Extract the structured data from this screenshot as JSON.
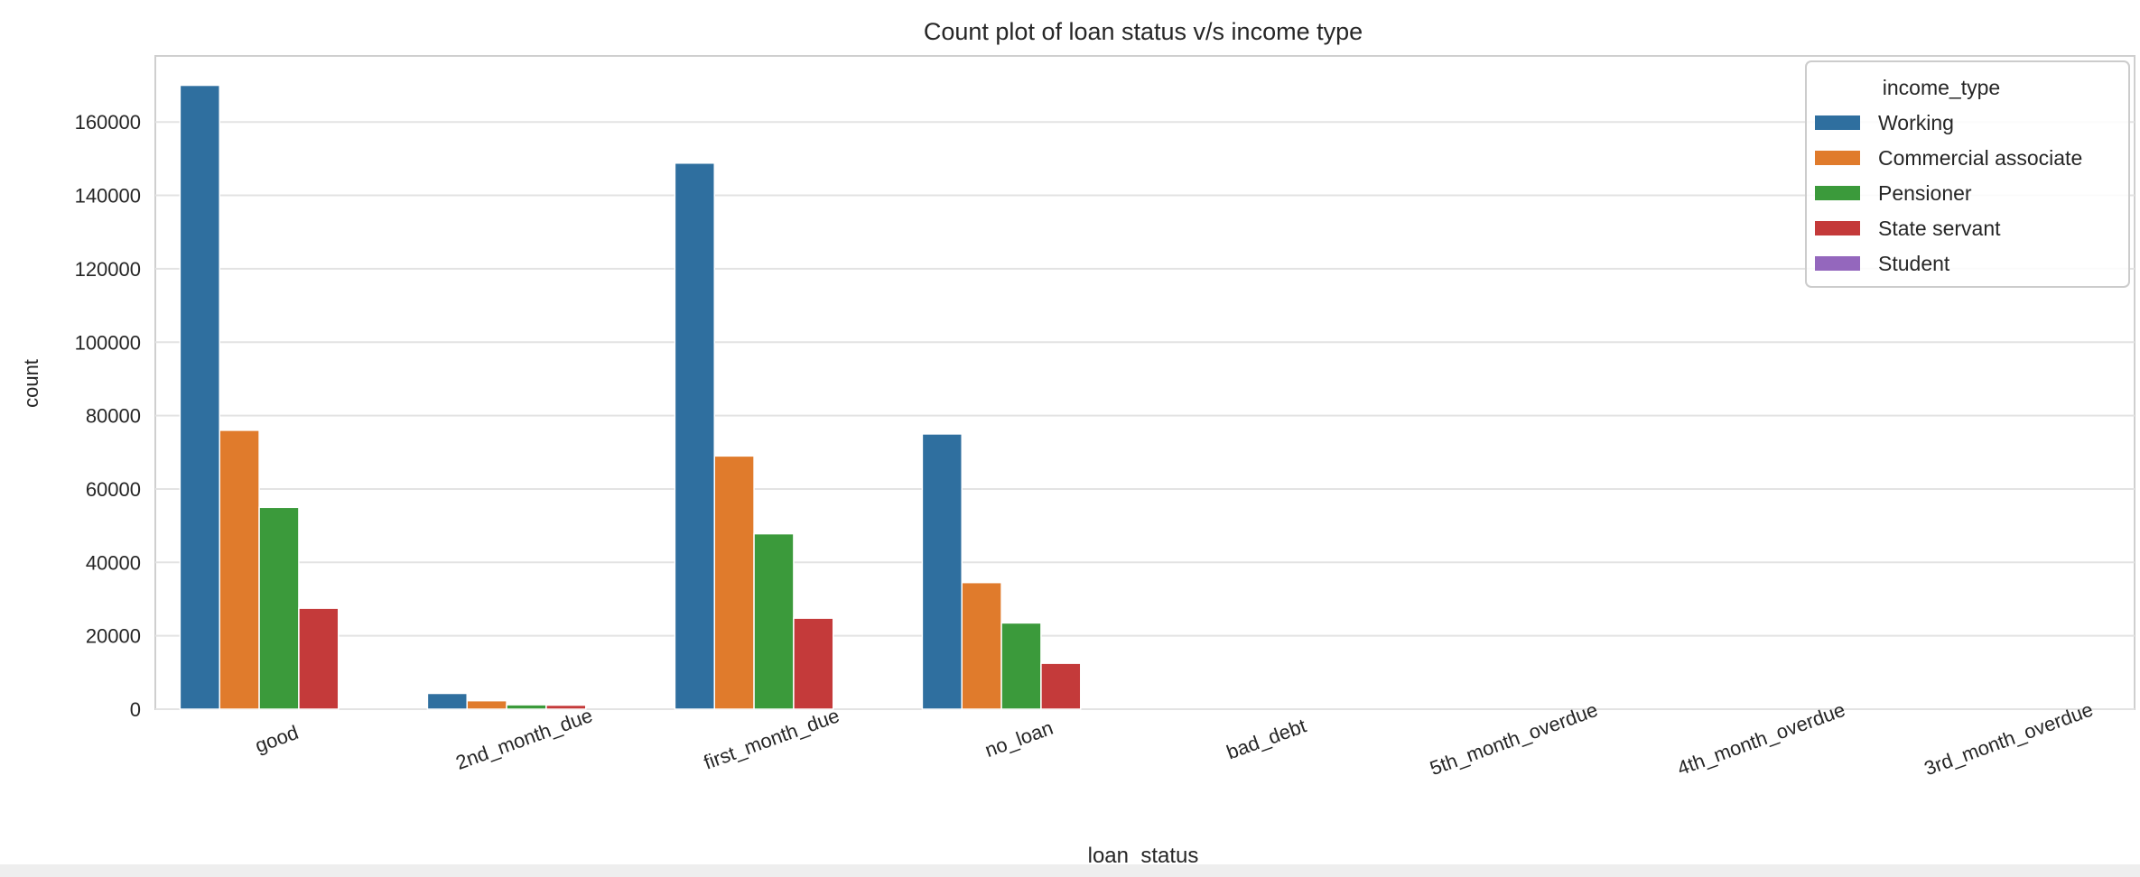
{
  "chart_data": {
    "type": "bar",
    "title": "Count plot of loan status v/s income type",
    "xlabel": "loan_status",
    "ylabel": "count",
    "categories": [
      "good",
      "2nd_month_due",
      "first_month_due",
      "no_loan",
      "bad_debt",
      "5th_month_overdue",
      "4th_month_overdue",
      "3rd_month_overdue"
    ],
    "series": [
      {
        "name": "Working",
        "color": "#2f6f9f",
        "values": [
          170000,
          4300,
          148800,
          75000,
          0,
          0,
          0,
          0
        ]
      },
      {
        "name": "Commercial associate",
        "color": "#e07b2c",
        "values": [
          76000,
          2300,
          69000,
          34500,
          0,
          0,
          0,
          0
        ]
      },
      {
        "name": "Pensioner",
        "color": "#3b9a3b",
        "values": [
          55000,
          1200,
          47800,
          23500,
          0,
          0,
          0,
          0
        ]
      },
      {
        "name": "State servant",
        "color": "#c43a3a",
        "values": [
          27500,
          1100,
          24800,
          12500,
          0,
          0,
          0,
          0
        ]
      },
      {
        "name": "Student",
        "color": "#9467bd",
        "values": [
          0,
          0,
          0,
          0,
          0,
          0,
          0,
          0
        ]
      }
    ],
    "ylim": [
      0,
      178000
    ],
    "yticks": [
      0,
      20000,
      40000,
      60000,
      80000,
      100000,
      120000,
      140000,
      160000
    ],
    "legend": {
      "title": "income_type",
      "position": "top-right"
    },
    "grid": true
  }
}
